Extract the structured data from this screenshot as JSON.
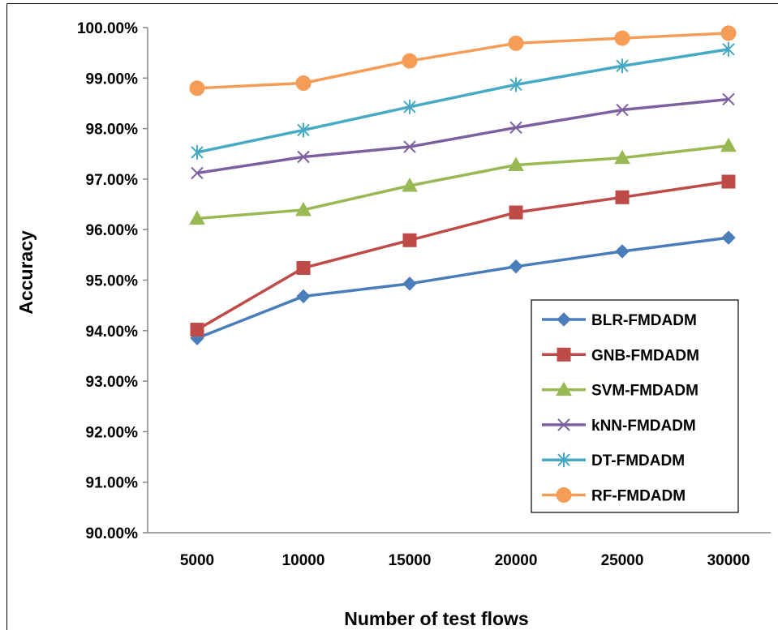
{
  "chart_data": {
    "type": "line",
    "xlabel": "Number of test flows",
    "ylabel": "Accuracy",
    "x": [
      "5000",
      "10000",
      "15000",
      "20000",
      "25000",
      "30000"
    ],
    "ylim": [
      90,
      100
    ],
    "yticks": [
      "90.00%",
      "91.00%",
      "92.00%",
      "93.00%",
      "94.00%",
      "95.00%",
      "96.00%",
      "97.00%",
      "98.00%",
      "99.00%",
      "100.00%"
    ],
    "grid": false,
    "legend_position": "bottom-right",
    "series": [
      {
        "name": "BLR-FMDADM",
        "color": "#4A7EBB",
        "marker": "diamond",
        "values": [
          93.85,
          94.68,
          94.93,
          95.27,
          95.57,
          95.84
        ]
      },
      {
        "name": "GNB-FMDADM",
        "color": "#BE4B48",
        "marker": "square",
        "values": [
          94.02,
          95.24,
          95.79,
          96.34,
          96.64,
          96.95
        ]
      },
      {
        "name": "SVM-FMDADM",
        "color": "#98B954",
        "marker": "triangle",
        "values": [
          96.22,
          96.39,
          96.87,
          97.28,
          97.42,
          97.66
        ]
      },
      {
        "name": "kNN-FMDADM",
        "color": "#7D60A0",
        "marker": "x",
        "values": [
          97.12,
          97.44,
          97.64,
          98.02,
          98.37,
          98.58
        ]
      },
      {
        "name": "DT-FMDADM",
        "color": "#46AAC5",
        "marker": "asterisk",
        "values": [
          97.53,
          97.97,
          98.43,
          98.87,
          99.24,
          99.57
        ]
      },
      {
        "name": "RF-FMDADM",
        "color": "#F59D56",
        "marker": "circle",
        "values": [
          98.8,
          98.9,
          99.34,
          99.69,
          99.79,
          99.89
        ]
      }
    ]
  }
}
